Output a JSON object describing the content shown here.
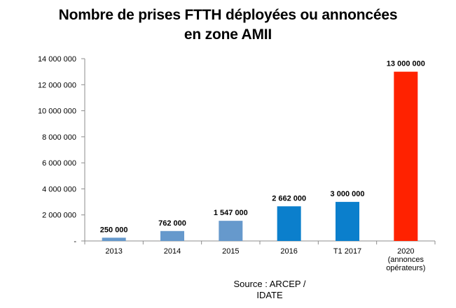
{
  "chart_data": {
    "type": "bar",
    "title_line1": "Nombre de prises FTTH déployées ou annoncées",
    "title_line2": "en zone AMII",
    "categories": [
      [
        "2013"
      ],
      [
        "2014"
      ],
      [
        "2015"
      ],
      [
        "2016"
      ],
      [
        "T1 2017"
      ],
      [
        "2020",
        "(annonces",
        "opérateurs)"
      ]
    ],
    "values": [
      250000,
      762000,
      1547000,
      2662000,
      3000000,
      13000000
    ],
    "data_labels": [
      "250 000",
      "762 000",
      "1 547 000",
      "2 662 000",
      "3 000 000",
      "13 000 000"
    ],
    "bar_colors": [
      "#6699cc",
      "#6699cc",
      "#6699cc",
      "#0b7fcc",
      "#0b7fcc",
      "#ff2200"
    ],
    "ylim": [
      0,
      14000000
    ],
    "y_ticks": [
      0,
      2000000,
      4000000,
      6000000,
      8000000,
      10000000,
      12000000,
      14000000
    ],
    "y_tick_labels": [
      "-",
      "2 000 000",
      "4 000 000",
      "6 000 000",
      "8 000 000",
      "10 000 000",
      "12 000 000",
      "14 000 000"
    ],
    "grid": false,
    "xlabel": "",
    "ylabel": "",
    "source_line1": "Source : ARCEP /",
    "source_line2": "IDATE"
  }
}
